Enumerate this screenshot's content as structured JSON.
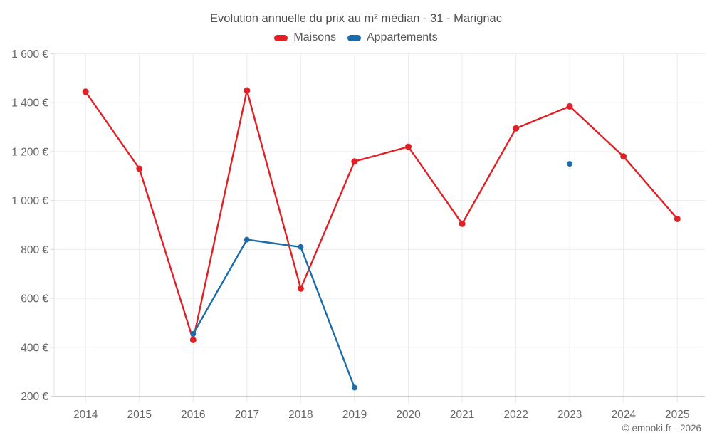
{
  "chart_data": {
    "type": "line",
    "title": "Evolution annuelle du prix au m² médian - 31 - Marignac",
    "categories": [
      "2014",
      "2015",
      "2016",
      "2017",
      "2018",
      "2019",
      "2020",
      "2021",
      "2022",
      "2023",
      "2024",
      "2025"
    ],
    "series": [
      {
        "name": "Maisons",
        "color": "#e12026",
        "values": [
          1445,
          1130,
          430,
          1450,
          640,
          1160,
          1220,
          905,
          1295,
          1385,
          1180,
          925
        ]
      },
      {
        "name": "Appartements",
        "color": "#1b6ca8",
        "values": [
          null,
          null,
          455,
          840,
          810,
          235,
          null,
          null,
          null,
          1150,
          null,
          null
        ]
      }
    ],
    "y_axis": {
      "min": 200,
      "max": 1600,
      "tick_interval": 200,
      "unit": "€",
      "tick_labels": [
        "200 €",
        "400 €",
        "600 €",
        "800 €",
        "1 000 €",
        "1 200 €",
        "1 400 €",
        "1 600 €"
      ]
    },
    "grid": true,
    "legend_position": "top"
  },
  "footer": {
    "credit": "© emooki.fr - 2026"
  },
  "colors": {
    "maisons": "#e12026",
    "appartements": "#1b6ca8",
    "gridline": "#ececec",
    "axis_line": "#cccccc",
    "tick_text": "#666666",
    "title_text": "#4e4e4e"
  }
}
